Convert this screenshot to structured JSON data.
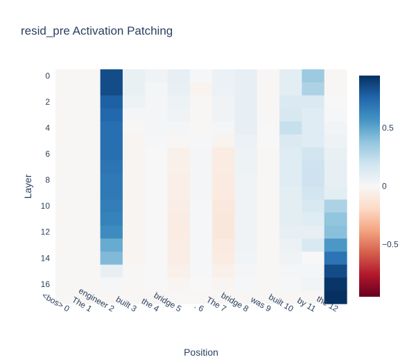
{
  "chart_data": {
    "type": "heatmap",
    "title": "resid_pre Activation Patching",
    "xlabel": "Position",
    "ylabel": "Layer",
    "x_categories": [
      "<bos> 0",
      "The 1",
      "engineer 2",
      "built 3",
      "the 4",
      "bridge 5",
      ". 6",
      "The 7",
      "bridge 8",
      "was 9",
      "built 10",
      "by 11",
      "the 12"
    ],
    "y_categories": [
      0,
      1,
      2,
      3,
      4,
      5,
      6,
      7,
      8,
      9,
      10,
      11,
      12,
      13,
      14,
      15,
      16,
      17
    ],
    "y_tick_labels": [
      "0",
      "2",
      "4",
      "6",
      "8",
      "10",
      "12",
      "14",
      "16"
    ],
    "zlim": [
      -0.95,
      0.95
    ],
    "colorbar_ticks": [
      "0.5",
      "0",
      "−0.5"
    ],
    "colorscale": "RdBu",
    "grid": false,
    "values": [
      [
        -0.01,
        -0.01,
        0.85,
        0.07,
        0.04,
        0.08,
        0.01,
        0.06,
        0.08,
        -0.01,
        0.1,
        0.35,
        -0.01
      ],
      [
        -0.01,
        -0.01,
        0.85,
        0.07,
        0.02,
        0.07,
        -0.03,
        0.06,
        0.08,
        -0.01,
        0.1,
        0.3,
        -0.01
      ],
      [
        -0.01,
        -0.01,
        0.78,
        0.05,
        0.02,
        0.05,
        -0.01,
        0.04,
        0.08,
        -0.01,
        0.14,
        0.14,
        0.0
      ],
      [
        -0.01,
        -0.01,
        0.75,
        0.02,
        0.02,
        0.04,
        -0.01,
        0.04,
        0.08,
        -0.01,
        0.16,
        0.12,
        0.01
      ],
      [
        -0.01,
        -0.01,
        0.72,
        -0.01,
        0.02,
        0.02,
        -0.01,
        0.02,
        0.08,
        0.0,
        0.22,
        0.12,
        0.03
      ],
      [
        -0.01,
        -0.01,
        0.72,
        -0.02,
        0.01,
        -0.01,
        0.01,
        -0.03,
        0.06,
        0.0,
        0.14,
        0.12,
        0.05
      ],
      [
        -0.01,
        -0.01,
        0.72,
        -0.02,
        0.0,
        -0.05,
        0.02,
        -0.08,
        0.05,
        -0.01,
        0.12,
        0.18,
        0.07
      ],
      [
        -0.01,
        -0.01,
        0.7,
        -0.02,
        0.0,
        -0.05,
        0.02,
        -0.08,
        0.05,
        -0.01,
        0.12,
        0.2,
        0.08
      ],
      [
        -0.01,
        -0.01,
        0.68,
        -0.02,
        0.0,
        -0.06,
        0.02,
        -0.09,
        0.04,
        -0.01,
        0.12,
        0.2,
        0.08
      ],
      [
        -0.01,
        -0.01,
        0.68,
        -0.02,
        0.0,
        -0.06,
        0.02,
        -0.09,
        0.04,
        -0.01,
        0.1,
        0.18,
        0.1
      ],
      [
        -0.01,
        -0.01,
        0.66,
        -0.02,
        0.0,
        -0.07,
        0.01,
        -0.1,
        0.04,
        -0.01,
        0.1,
        0.15,
        0.3
      ],
      [
        -0.01,
        -0.01,
        0.64,
        -0.02,
        0.0,
        -0.08,
        0.01,
        -0.11,
        0.04,
        -0.01,
        0.1,
        0.12,
        0.38
      ],
      [
        -0.01,
        -0.01,
        0.6,
        -0.02,
        0.0,
        -0.08,
        0.01,
        -0.11,
        0.04,
        -0.01,
        0.08,
        0.08,
        0.4
      ],
      [
        -0.01,
        -0.01,
        0.48,
        -0.02,
        0.0,
        -0.07,
        0.01,
        -0.09,
        0.04,
        -0.01,
        0.06,
        0.15,
        0.55
      ],
      [
        -0.01,
        -0.01,
        0.42,
        -0.02,
        0.0,
        -0.07,
        0.01,
        -0.08,
        0.03,
        -0.01,
        0.04,
        0.0,
        0.7
      ],
      [
        -0.01,
        -0.01,
        0.08,
        -0.01,
        0.0,
        -0.05,
        0.01,
        -0.05,
        0.02,
        -0.01,
        0.02,
        0.02,
        0.85
      ],
      [
        -0.01,
        -0.01,
        0.01,
        -0.01,
        0.0,
        -0.02,
        0.0,
        -0.02,
        0.01,
        -0.01,
        0.01,
        0.03,
        0.93
      ],
      [
        -0.01,
        -0.01,
        -0.01,
        -0.01,
        -0.01,
        -0.01,
        -0.01,
        -0.01,
        -0.01,
        -0.01,
        -0.01,
        -0.01,
        0.95
      ]
    ]
  }
}
